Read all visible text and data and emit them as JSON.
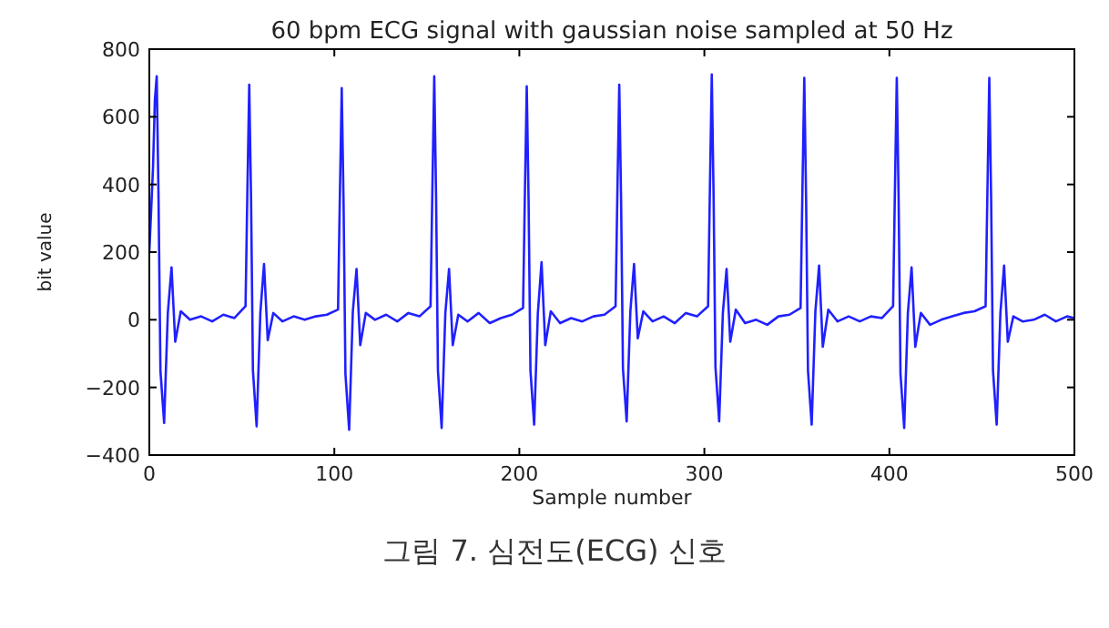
{
  "chart_data": {
    "type": "line",
    "title": "60 bpm ECG signal with gaussian noise sampled at 50 Hz",
    "xlabel": "Sample number",
    "ylabel": "bit value",
    "annotations": [
      "그림 7. 심전도(ECG) 신호"
    ],
    "xlim": [
      0,
      500
    ],
    "xticks": [
      0,
      100,
      200,
      300,
      400,
      500
    ],
    "ylim": [
      -400,
      800
    ],
    "yticks": [
      {
        "value": -400,
        "label": "−400"
      },
      {
        "value": -200,
        "label": "−200"
      },
      0,
      200,
      400,
      600,
      800
    ],
    "grid": false,
    "marker": "none",
    "line_style": "solid",
    "series": [
      {
        "color": "#2020ff",
        "x": [
          0,
          2,
          3,
          4,
          5,
          6,
          8,
          10,
          12,
          14,
          17,
          22,
          28,
          34,
          40,
          46,
          52,
          53,
          54,
          55,
          56,
          58,
          60,
          62,
          64,
          67,
          72,
          78,
          84,
          90,
          96,
          102,
          103,
          104,
          105,
          106,
          108,
          110,
          112,
          114,
          117,
          122,
          128,
          134,
          140,
          146,
          152,
          153,
          154,
          155,
          156,
          158,
          160,
          162,
          164,
          167,
          172,
          178,
          184,
          190,
          196,
          202,
          203,
          204,
          205,
          206,
          208,
          210,
          212,
          214,
          217,
          222,
          228,
          234,
          240,
          246,
          252,
          253,
          254,
          255,
          256,
          258,
          260,
          262,
          264,
          267,
          272,
          278,
          284,
          290,
          296,
          302,
          303,
          304,
          305,
          306,
          308,
          310,
          312,
          314,
          317,
          322,
          328,
          334,
          340,
          346,
          352,
          353,
          354,
          355,
          356,
          358,
          360,
          362,
          364,
          367,
          372,
          378,
          384,
          390,
          396,
          402,
          403,
          404,
          405,
          406,
          408,
          410,
          412,
          414,
          417,
          422,
          428,
          434,
          440,
          446,
          452,
          453,
          454,
          455,
          456,
          458,
          460,
          462,
          464,
          467,
          472,
          478,
          484,
          490,
          496,
          500
        ],
        "values": [
          200,
          450,
          650,
          720,
          350,
          -150,
          -305,
          20,
          155,
          -65,
          25,
          0,
          10,
          -5,
          15,
          5,
          40,
          380,
          695,
          350,
          -150,
          -315,
          20,
          165,
          -60,
          20,
          -5,
          10,
          0,
          10,
          15,
          30,
          370,
          685,
          340,
          -160,
          -325,
          25,
          150,
          -75,
          20,
          0,
          15,
          -5,
          20,
          10,
          40,
          390,
          720,
          360,
          -150,
          -320,
          20,
          150,
          -75,
          15,
          -5,
          20,
          -10,
          5,
          15,
          35,
          375,
          690,
          350,
          -150,
          -310,
          20,
          170,
          -75,
          25,
          -10,
          5,
          -5,
          10,
          15,
          40,
          380,
          695,
          350,
          -145,
          -300,
          25,
          165,
          -55,
          25,
          -5,
          10,
          -10,
          20,
          10,
          40,
          390,
          725,
          360,
          -140,
          -300,
          20,
          150,
          -65,
          30,
          -10,
          0,
          -15,
          10,
          15,
          35,
          385,
          715,
          350,
          -150,
          -310,
          25,
          160,
          -80,
          30,
          -5,
          10,
          -5,
          10,
          5,
          40,
          385,
          715,
          355,
          -160,
          -320,
          20,
          155,
          -80,
          20,
          -15,
          0,
          10,
          20,
          25,
          40,
          385,
          715,
          355,
          -150,
          -310,
          20,
          160,
          -65,
          10,
          -5,
          0,
          15,
          -5,
          10,
          5
        ]
      }
    ]
  }
}
